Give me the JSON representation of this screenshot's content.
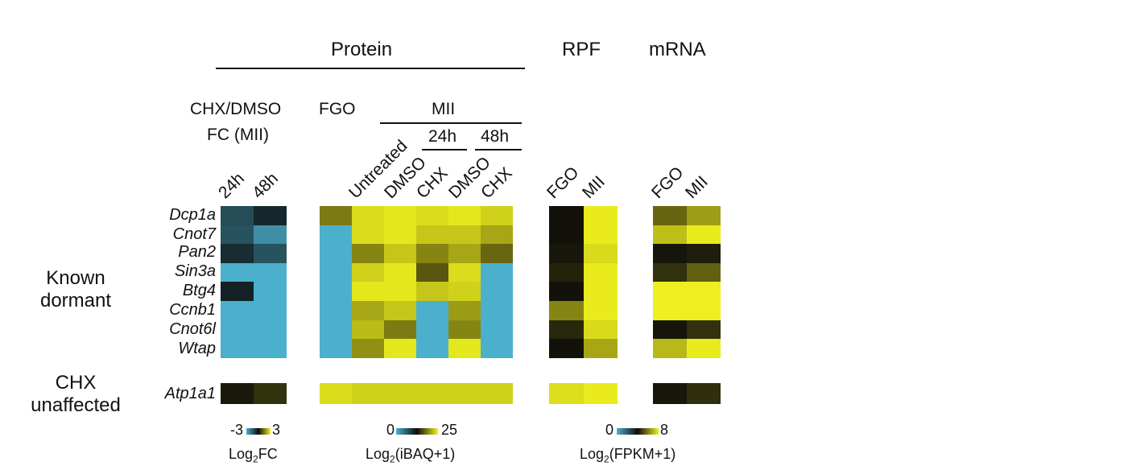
{
  "headers": {
    "protein": "Protein",
    "rpf": "RPF",
    "mrna": "mRNA",
    "chx_dmso_1": "CHX/DMSO",
    "chx_dmso_2": "FC (MII)",
    "fgo": "FGO",
    "mii": "MII",
    "h24": "24h",
    "h48": "48h"
  },
  "columns": {
    "fc": [
      "24h",
      "48h"
    ],
    "protein": [
      "Untreated",
      "DMSO",
      "CHX",
      "DMSO",
      "CHX"
    ],
    "rpf": [
      "FGO",
      "MII"
    ],
    "mrna": [
      "FGO",
      "MII"
    ]
  },
  "groups": {
    "known_1": "Known",
    "known_2": "dormant",
    "chx_1": "CHX",
    "chx_2": "unaffected"
  },
  "genes": [
    "Dcp1a",
    "Cnot7",
    "Pan2",
    "Sin3a",
    "Btg4",
    "Ccnb1",
    "Cnot6l",
    "Wtap"
  ],
  "unaffected_gene": "Atp1a1",
  "legends": {
    "fc": {
      "min": "-3",
      "max": "3",
      "label_pre": "Log",
      "label_sub": "2",
      "label_post": "FC"
    },
    "ibaq": {
      "min": "0",
      "max": "25",
      "label_pre": "Log",
      "label_sub": "2",
      "label_post": "(iBAQ+1)"
    },
    "fpkm": {
      "min": "0",
      "max": "8",
      "label_pre": "Log",
      "label_sub": "2",
      "label_post": "(FPKM+1)"
    }
  },
  "colors": {
    "missing": "#4bb0cc",
    "black": "#0b0b0b",
    "yellow": "#f0f21e"
  },
  "chart_data": {
    "type": "heatmap",
    "title": "",
    "missing_value_color": "#4bb0cc",
    "panels": [
      {
        "name": "CHX/DMSO FC (MII)",
        "scale": "Log2FC",
        "range": [
          -3,
          3
        ],
        "columns": [
          "24h",
          "48h"
        ],
        "rows": [
          "Dcp1a",
          "Cnot7",
          "Pan2",
          "Sin3a",
          "Btg4",
          "Ccnb1",
          "Cnot6l",
          "Wtap"
        ],
        "values": [
          [
            -1.2,
            -0.5
          ],
          [
            -1.3,
            -2.4
          ],
          [
            -0.6,
            -1.3
          ],
          [
            null,
            null
          ],
          [
            -0.4,
            null
          ],
          [
            null,
            null
          ],
          [
            null,
            null
          ],
          [
            null,
            null
          ]
        ],
        "unaffected": {
          "row": "Atp1a1",
          "values": [
            0.2,
            0.5
          ]
        }
      },
      {
        "name": "Protein",
        "scale": "Log2(iBAQ+1)",
        "range": [
          0,
          25
        ],
        "columns": [
          "FGO",
          "MII Untreated",
          "MII 24h DMSO",
          "MII 24h CHX",
          "MII 48h DMSO",
          "MII 48h CHX"
        ],
        "rows": [
          "Dcp1a",
          "Cnot7",
          "Pan2",
          "Sin3a",
          "Btg4",
          "Ccnb1",
          "Cnot6l",
          "Wtap"
        ],
        "values": [
          [
            14,
            23,
            24,
            23,
            24,
            22
          ],
          [
            null,
            23,
            24,
            21,
            21,
            18
          ],
          [
            null,
            15,
            21,
            15,
            18,
            12
          ],
          [
            null,
            22,
            24,
            10,
            23,
            null
          ],
          [
            null,
            24,
            24,
            21,
            22,
            null
          ],
          [
            null,
            18,
            21,
            null,
            17,
            null
          ],
          [
            null,
            20,
            14,
            null,
            15,
            null
          ],
          [
            null,
            16,
            24,
            null,
            24,
            null
          ]
        ],
        "unaffected": {
          "row": "Atp1a1",
          "values": [
            23,
            22,
            22,
            22,
            22,
            22
          ]
        }
      },
      {
        "name": "RPF",
        "scale": "Log2(FPKM+1)",
        "range": [
          0,
          8
        ],
        "columns": [
          "FGO",
          "MII"
        ],
        "rows": [
          "Dcp1a",
          "Cnot7",
          "Pan2",
          "Sin3a",
          "Btg4",
          "Ccnb1",
          "Cnot6l",
          "Wtap"
        ],
        "values": [
          [
            0.3,
            7.8
          ],
          [
            0.3,
            7.8
          ],
          [
            0.5,
            7.3
          ],
          [
            1.0,
            7.8
          ],
          [
            0.3,
            7.8
          ],
          [
            4.8,
            7.8
          ],
          [
            1.2,
            7.3
          ],
          [
            0.3,
            5.8
          ]
        ],
        "unaffected": {
          "row": "Atp1a1",
          "values": [
            7.4,
            7.8
          ]
        }
      },
      {
        "name": "mRNA",
        "scale": "Log2(FPKM+1)",
        "range": [
          0,
          8
        ],
        "columns": [
          "FGO",
          "MII"
        ],
        "rows": [
          "Dcp1a",
          "Cnot7",
          "Pan2",
          "Sin3a",
          "Btg4",
          "Ccnb1",
          "Cnot6l",
          "Wtap"
        ],
        "values": [
          [
            3.8,
            5.5
          ],
          [
            6.5,
            7.8
          ],
          [
            0.4,
            0.8
          ],
          [
            1.6,
            3.6
          ],
          [
            7.9,
            7.9
          ],
          [
            7.9,
            7.9
          ],
          [
            0.4,
            1.6
          ],
          [
            6.3,
            7.8
          ]
        ],
        "unaffected": {
          "row": "Atp1a1",
          "values": [
            0.5,
            1.5
          ]
        }
      }
    ]
  }
}
